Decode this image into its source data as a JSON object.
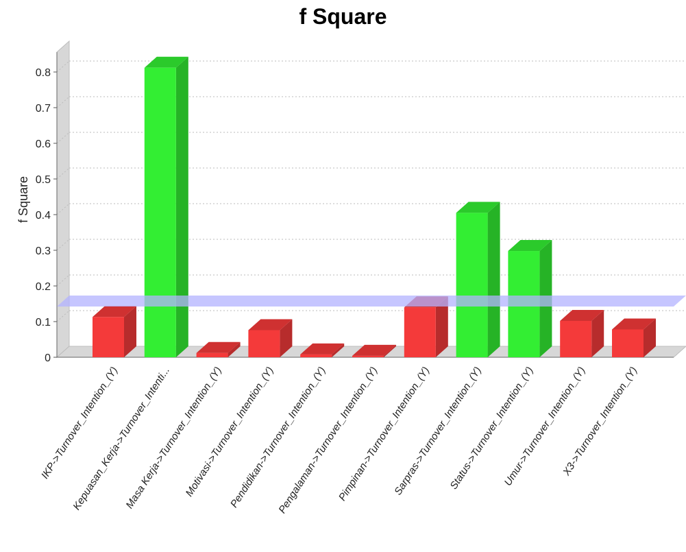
{
  "chart_data": {
    "type": "bar",
    "title": "f Square",
    "xlabel": "",
    "ylabel": "f Square",
    "ylim": [
      0,
      0.85
    ],
    "yticks": [
      "0",
      "0.1",
      "0.2",
      "0.3",
      "0.4",
      "0.5",
      "0.6",
      "0.7",
      "0.8"
    ],
    "grid": true,
    "threshold": 0.15,
    "categories": [
      "IKP->Turnover_Intention_(Y)",
      "Kepuasan_Kerja->Turnover_Intenti...",
      "Masa Kerja->Turnover_Intention_(Y)",
      "Motivasi->Turnover_Intention_(Y)",
      "Pendidikan->Turnover_Intention_(Y)",
      "Pengalaman->Turnover_Intention_(Y)",
      "Pimpinan->Turnover_Intention_(Y)",
      "Sarpras->Turnover_Intention_(Y)",
      "Status->Turnover_Intention_(Y)",
      "Umur->Turnover_Intention_(Y)",
      "X3->Turnover_Intention_(Y)"
    ],
    "values": [
      0.113,
      0.812,
      0.012,
      0.076,
      0.008,
      0.004,
      0.14,
      0.405,
      0.298,
      0.102,
      0.078
    ],
    "colors": {
      "above_threshold": "#33ee33",
      "below_threshold": "#f43a3a",
      "threshold_band": "#b3b3ff"
    }
  }
}
